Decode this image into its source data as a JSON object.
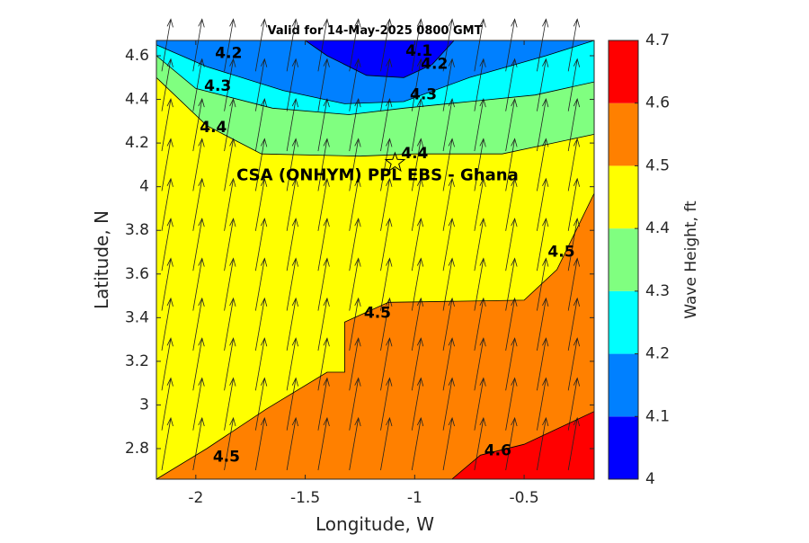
{
  "chart_data": {
    "type": "contour",
    "title": "Valid for 14-May-2025 0800 GMT",
    "xlabel": "Longitude, W",
    "ylabel": "Latitude, N",
    "xlim": [
      -2.18,
      -0.18
    ],
    "ylim": [
      2.66,
      4.67
    ],
    "xticks": [
      -2,
      -1.5,
      -1,
      -0.5
    ],
    "xtick_labels": [
      "-2",
      "-1.5",
      "-1",
      "-0.5"
    ],
    "yticks": [
      2.8,
      3.0,
      3.2,
      3.4,
      3.6,
      3.8,
      4.0,
      4.2,
      4.4,
      4.6
    ],
    "ytick_labels": [
      "2.8",
      "3",
      "3.2",
      "3.4",
      "3.6",
      "3.8",
      "4",
      "4.2",
      "4.4",
      "4.6"
    ],
    "colorbar": {
      "label": "Wave Height, ft",
      "limits": [
        4.0,
        4.7
      ],
      "ticks": [
        4.0,
        4.1,
        4.2,
        4.3,
        4.4,
        4.5,
        4.6,
        4.7
      ],
      "tick_labels": [
        "4",
        "4.1",
        "4.2",
        "4.3",
        "4.4",
        "4.5",
        "4.6",
        "4.7"
      ],
      "colors": [
        "#0000ff",
        "#0080ff",
        "#00ffff",
        "#80ff80",
        "#ffff00",
        "#ff8000",
        "#ff0000"
      ]
    },
    "contour_lines": [
      {
        "level": 4.1,
        "points": [
          [
            -1.5,
            4.67
          ],
          [
            -1.4,
            4.6
          ],
          [
            -1.22,
            4.51
          ],
          [
            -1.05,
            4.5
          ],
          [
            -0.92,
            4.56
          ],
          [
            -0.82,
            4.67
          ]
        ]
      },
      {
        "level": 4.2,
        "points": [
          [
            -2.18,
            4.65
          ],
          [
            -1.95,
            4.55
          ],
          [
            -1.6,
            4.44
          ],
          [
            -1.32,
            4.38
          ],
          [
            -1.05,
            4.39
          ],
          [
            -0.75,
            4.5
          ],
          [
            -0.4,
            4.6
          ],
          [
            -0.18,
            4.67
          ]
        ]
      },
      {
        "level": 4.3,
        "points": [
          [
            -2.18,
            4.6
          ],
          [
            -2.0,
            4.45
          ],
          [
            -1.65,
            4.36
          ],
          [
            -1.3,
            4.33
          ],
          [
            -1.05,
            4.36
          ],
          [
            -0.75,
            4.39
          ],
          [
            -0.45,
            4.42
          ],
          [
            -0.18,
            4.48
          ]
        ]
      },
      {
        "level": 4.4,
        "points": [
          [
            -2.18,
            4.5
          ],
          [
            -1.95,
            4.28
          ],
          [
            -1.7,
            4.15
          ],
          [
            -1.25,
            4.14
          ],
          [
            -1.0,
            4.15
          ],
          [
            -0.6,
            4.15
          ],
          [
            -0.18,
            4.24
          ]
        ]
      },
      {
        "level": 4.5,
        "points": [
          [
            -2.18,
            2.66
          ],
          [
            -1.95,
            2.8
          ],
          [
            -1.68,
            2.98
          ],
          [
            -1.4,
            3.15
          ],
          [
            -1.32,
            3.15
          ],
          [
            -1.32,
            3.38
          ],
          [
            -1.12,
            3.47
          ],
          [
            -0.5,
            3.48
          ],
          [
            -0.35,
            3.62
          ],
          [
            -0.18,
            3.97
          ]
        ]
      },
      {
        "level": 4.6,
        "points": [
          [
            -0.83,
            2.66
          ],
          [
            -0.7,
            2.77
          ],
          [
            -0.5,
            2.82
          ],
          [
            -0.18,
            2.97
          ]
        ]
      }
    ],
    "contour_labels": [
      {
        "text": "4.1",
        "x": -0.98,
        "y": 4.62
      },
      {
        "text": "4.2",
        "x": -1.85,
        "y": 4.61
      },
      {
        "text": "4.2",
        "x": -0.91,
        "y": 4.56
      },
      {
        "text": "4.3",
        "x": -1.9,
        "y": 4.46
      },
      {
        "text": "4.3",
        "x": -0.96,
        "y": 4.42
      },
      {
        "text": "4.4",
        "x": -1.92,
        "y": 4.27
      },
      {
        "text": "4.4",
        "x": -1.0,
        "y": 4.15
      },
      {
        "text": "4.5",
        "x": -1.17,
        "y": 3.42
      },
      {
        "text": "4.5",
        "x": -0.33,
        "y": 3.7
      },
      {
        "text": "4.5",
        "x": -1.86,
        "y": 2.76
      },
      {
        "text": "4.6",
        "x": -0.62,
        "y": 2.79
      }
    ],
    "wave_direction_arrows": "uniform field pointing north-northeast",
    "site_marker": {
      "symbol": "star",
      "x": -1.09,
      "y": 4.11
    },
    "annotation": {
      "text": "CSA (ONHYM) PPL EBS  - Ghana",
      "x": -1.17,
      "y": 4.05
    }
  }
}
